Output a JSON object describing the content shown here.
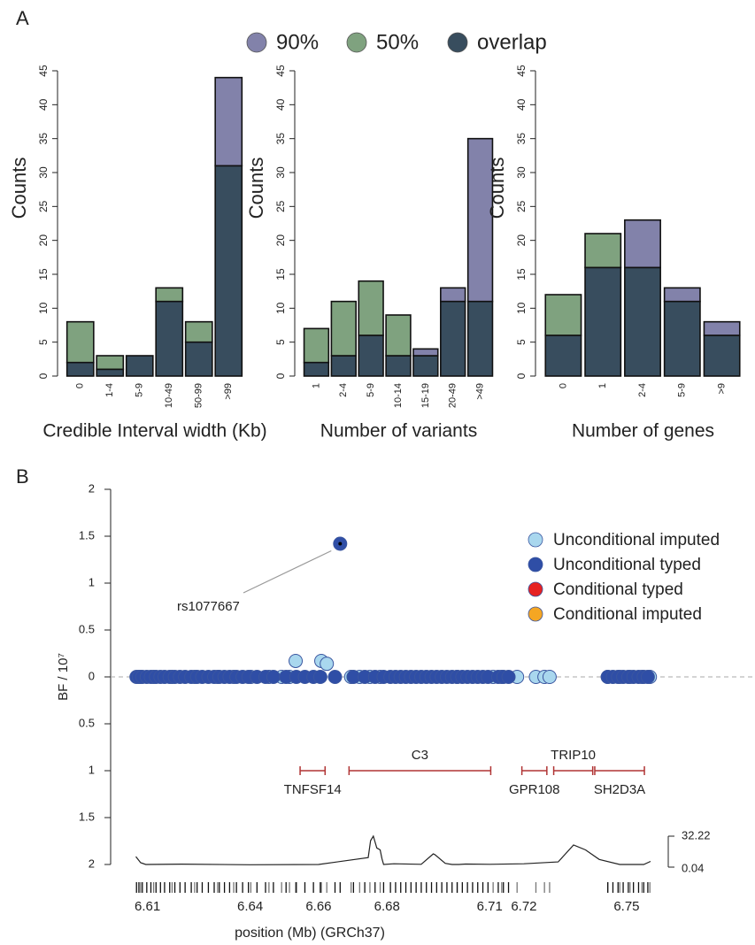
{
  "figure": {
    "panels": [
      "A",
      "B"
    ]
  },
  "chart_data": [
    {
      "type": "bar",
      "stacked": true,
      "legend": "top",
      "ylabel": "Counts",
      "xlabel": "Credible Interval width (Kb)",
      "categories": [
        "0",
        "1-4",
        "5-9",
        "10-49",
        "50-99",
        ">99"
      ],
      "ylim": [
        0,
        45
      ],
      "yticks": [
        0,
        5,
        10,
        15,
        20,
        25,
        30,
        35,
        40,
        45
      ],
      "series": [
        {
          "name": "overlap",
          "color": "#384d5e",
          "values": [
            2,
            1,
            3,
            11,
            5,
            31
          ]
        },
        {
          "name": "50%",
          "color": "#7fa27f",
          "values": [
            6,
            2,
            0,
            2,
            3,
            0
          ]
        },
        {
          "name": "90%",
          "color": "#8282aa",
          "values": [
            0,
            0,
            0,
            0,
            0,
            13
          ]
        }
      ]
    },
    {
      "type": "bar",
      "stacked": true,
      "ylabel": "Counts",
      "xlabel": "Number of variants",
      "categories": [
        "1",
        "2-4",
        "5-9",
        "10-14",
        "15-19",
        "20-49",
        ">49"
      ],
      "ylim": [
        0,
        45
      ],
      "yticks": [
        0,
        5,
        10,
        15,
        20,
        25,
        30,
        35,
        40,
        45
      ],
      "series": [
        {
          "color": "#384d5e",
          "values": [
            2,
            3,
            6,
            3,
            3,
            11,
            11
          ]
        },
        {
          "color": "#7fa27f",
          "values": [
            5,
            8,
            8,
            6,
            0,
            0,
            0
          ]
        },
        {
          "color": "#8282aa",
          "values": [
            0,
            0,
            0,
            0,
            1,
            2,
            24
          ]
        }
      ]
    },
    {
      "type": "bar",
      "stacked": true,
      "ylabel": "Counts",
      "xlabel": "Number of genes",
      "categories": [
        "0",
        "1",
        "2-4",
        "5-9",
        ">9"
      ],
      "ylim": [
        0,
        45
      ],
      "yticks": [
        0,
        5,
        10,
        15,
        20,
        25,
        30,
        35,
        40,
        45
      ],
      "series": [
        {
          "color": "#384d5e",
          "values": [
            6,
            16,
            16,
            11,
            6
          ]
        },
        {
          "color": "#7fa27f",
          "values": [
            6,
            5,
            0,
            0,
            0
          ]
        },
        {
          "color": "#8282aa",
          "values": [
            0,
            0,
            7,
            2,
            2
          ]
        }
      ]
    },
    {
      "type": "scatter",
      "ylabel": "BF / 10⁷",
      "xlabel": "position (Mb) (GRCh37)",
      "xlim": [
        6.607,
        6.757
      ],
      "xticks": [
        6.61,
        6.64,
        6.66,
        6.68,
        6.71,
        6.72,
        6.75
      ],
      "ylim": [
        -2,
        2
      ],
      "yticks": [
        {
          "value": -2,
          "label": "2"
        },
        {
          "value": -1.5,
          "label": "1.5"
        },
        {
          "value": -1,
          "label": "1"
        },
        {
          "value": -0.5,
          "label": "0.5"
        },
        0,
        0.5,
        1,
        1.5,
        2
      ],
      "zero_line": true,
      "legend": "upper right",
      "annotation": "rs1077667",
      "series": [
        {
          "name": "Unconditional imputed",
          "color": "#a9d7ee",
          "x": [
            6.608,
            6.6118,
            6.6172,
            6.6238,
            6.6305,
            6.6352,
            6.6402,
            6.6455,
            6.6492,
            6.6515,
            6.6533,
            6.6608,
            6.6624,
            6.6695,
            6.672,
            6.675,
            6.678,
            6.7005,
            6.711,
            6.7135,
            6.718,
            6.7235,
            6.726,
            6.7275,
            6.7445,
            6.748,
            6.751,
            6.7545,
            6.7568
          ],
          "values": [
            0,
            0,
            0,
            0,
            0,
            0,
            0,
            0,
            0,
            0,
            0.17,
            0.17,
            0.14,
            0,
            0,
            0,
            0,
            0,
            0,
            0,
            0,
            0,
            0,
            0,
            0,
            0,
            0,
            0,
            0
          ]
        },
        {
          "name": "Unconditional typed",
          "color": "#2f4ea6",
          "x": [
            6.6068,
            6.6075,
            6.6085,
            6.6098,
            6.611,
            6.6125,
            6.6138,
            6.615,
            6.6165,
            6.618,
            6.6195,
            6.621,
            6.6228,
            6.6245,
            6.626,
            6.6278,
            6.6295,
            6.631,
            6.6325,
            6.634,
            6.636,
            6.6378,
            6.6395,
            6.642,
            6.6445,
            6.6468,
            6.6505,
            6.6535,
            6.656,
            6.6585,
            6.6605,
            6.6648,
            6.6663,
            6.6702,
            6.6735,
            6.6765,
            6.679,
            6.681,
            6.6825,
            6.684,
            6.6855,
            6.687,
            6.6885,
            6.69,
            6.6915,
            6.693,
            6.6945,
            6.696,
            6.6975,
            6.699,
            6.7005,
            6.702,
            6.7035,
            6.705,
            6.7065,
            6.708,
            6.7095,
            6.7125,
            6.714,
            6.7155,
            6.7445,
            6.746,
            6.7475,
            6.749,
            6.7505,
            6.752,
            6.7535,
            6.755,
            6.7562
          ],
          "values": [
            0,
            0,
            0,
            0,
            0,
            0,
            0,
            0,
            0,
            0,
            0,
            0,
            0,
            0,
            0,
            0,
            0,
            0,
            0,
            0,
            0,
            0,
            0,
            0,
            0,
            0,
            0,
            0,
            0,
            0,
            0,
            0,
            1.42,
            0,
            0,
            0,
            0,
            0,
            0,
            0,
            0,
            0,
            0,
            0,
            0,
            0,
            0,
            0,
            0,
            0,
            0,
            0,
            0,
            0,
            0,
            0,
            0,
            0,
            0,
            0,
            0,
            0,
            0,
            0,
            0,
            0,
            0,
            0,
            0
          ]
        },
        {
          "name": "Conditional typed",
          "color": "#e62222",
          "x": [],
          "values": []
        },
        {
          "name": "Conditional imputed",
          "color": "#f5a623",
          "x": [],
          "values": []
        }
      ],
      "genes": [
        {
          "name": "TNFSF14",
          "start": 6.6546,
          "end": 6.6619
        },
        {
          "name": "C3",
          "start": 6.6689,
          "end": 6.7103
        },
        {
          "name": "GPR108",
          "start": 6.7194,
          "end": 6.7267
        },
        {
          "name": "TRIP10",
          "start": 6.7287,
          "end": 6.7401
        },
        {
          "name": "SH2D3A",
          "start": 6.7407,
          "end": 6.7552
        }
      ],
      "gene_color": "#b03434",
      "coverage": {
        "x": [
          6.6066,
          6.608,
          6.6095,
          6.62,
          6.64,
          6.66,
          6.6745,
          6.6752,
          6.676,
          6.677,
          6.678,
          6.6785,
          6.679,
          6.682,
          6.69,
          6.6935,
          6.694,
          6.697,
          6.699,
          6.7005,
          6.701,
          6.703,
          6.71,
          6.72,
          6.73,
          6.7345,
          6.738,
          6.742,
          6.748,
          6.755,
          6.757
        ],
        "values": [
          11,
          4.6,
          2.8,
          3.2,
          2.5,
          2.8,
          10,
          27.6,
          32.22,
          20,
          18,
          9,
          2.8,
          3.5,
          3,
          13.8,
          13,
          4,
          2.8,
          2.8,
          2.8,
          3.3,
          3,
          3.5,
          5.5,
          23,
          18,
          8,
          2.8,
          2.8,
          6
        ],
        "range": [
          0.04,
          32.22
        ]
      }
    }
  ]
}
